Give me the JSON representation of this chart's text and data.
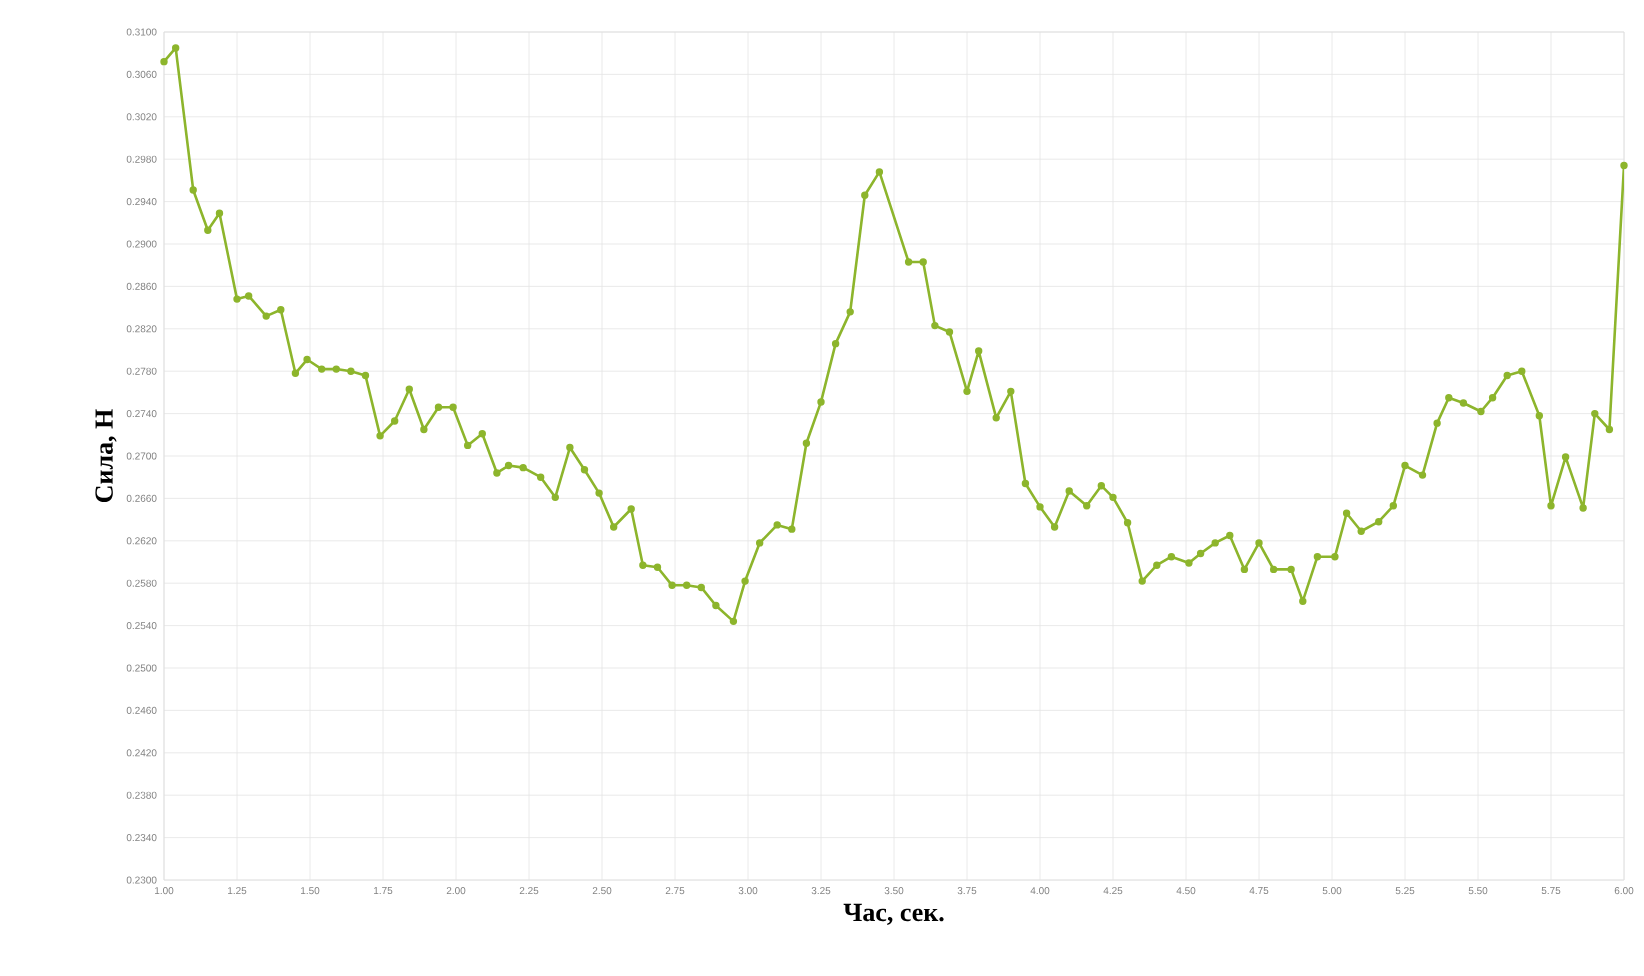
{
  "chart_data": {
    "type": "line",
    "xlabel": "Час, сек.",
    "ylabel": "Сила, Н",
    "x": [
      1.0,
      1.04,
      1.1,
      1.15,
      1.19,
      1.25,
      1.29,
      1.35,
      1.4,
      1.45,
      1.49,
      1.54,
      1.59,
      1.64,
      1.69,
      1.74,
      1.79,
      1.84,
      1.89,
      1.94,
      1.99,
      2.04,
      2.09,
      2.14,
      2.18,
      2.23,
      2.29,
      2.34,
      2.39,
      2.44,
      2.49,
      2.54,
      2.6,
      2.64,
      2.69,
      2.74,
      2.79,
      2.84,
      2.89,
      2.95,
      2.99,
      3.04,
      3.1,
      3.15,
      3.2,
      3.25,
      3.3,
      3.35,
      3.4,
      3.45,
      3.55,
      3.6,
      3.64,
      3.69,
      3.75,
      3.79,
      3.85,
      3.9,
      3.95,
      4.0,
      4.05,
      4.1,
      4.16,
      4.21,
      4.25,
      4.3,
      4.35,
      4.4,
      4.45,
      4.51,
      4.55,
      4.6,
      4.65,
      4.7,
      4.75,
      4.8,
      4.86,
      4.9,
      4.95,
      5.01,
      5.05,
      5.1,
      5.16,
      5.21,
      5.25,
      5.31,
      5.36,
      5.4,
      5.45,
      5.51,
      5.55,
      5.6,
      5.65,
      5.71,
      5.75,
      5.8,
      5.86,
      5.9,
      5.95,
      6.0
    ],
    "series": [
      {
        "color": "#8db52c",
        "values": [
          0.3072,
          0.3085,
          0.2951,
          0.2913,
          0.2929,
          0.2848,
          0.2851,
          0.2832,
          0.2838,
          0.2778,
          0.2791,
          0.2782,
          0.2782,
          0.278,
          0.2776,
          0.2719,
          0.2733,
          0.2763,
          0.2725,
          0.2746,
          0.2746,
          0.271,
          0.2721,
          0.2684,
          0.2691,
          0.2689,
          0.268,
          0.2661,
          0.2708,
          0.2687,
          0.2665,
          0.2633,
          0.265,
          0.2597,
          0.2595,
          0.2578,
          0.2578,
          0.2576,
          0.2559,
          0.2544,
          0.2582,
          0.2618,
          0.2635,
          0.2631,
          0.2712,
          0.2751,
          0.2806,
          0.2836,
          0.2946,
          0.2968,
          0.2883,
          0.2883,
          0.2823,
          0.2817,
          0.2761,
          0.2799,
          0.2736,
          0.2761,
          0.2674,
          0.2652,
          0.2633,
          0.2667,
          0.2653,
          0.2672,
          0.2661,
          0.2637,
          0.2582,
          0.2597,
          0.2605,
          0.2599,
          0.2608,
          0.2618,
          0.2625,
          0.2593,
          0.2618,
          0.2593,
          0.2593,
          0.2563,
          0.2605,
          0.2605,
          0.2646,
          0.2629,
          0.2638,
          0.2653,
          0.2691,
          0.2682,
          0.2731,
          0.2755,
          0.275,
          0.2742,
          0.2755,
          0.2776,
          0.278,
          0.2738,
          0.2653,
          0.2699,
          0.2651,
          0.274,
          0.2725,
          0.2974
        ]
      }
    ],
    "xlim": [
      1.0,
      6.0
    ],
    "xticks": [
      {
        "value": 1.0,
        "label": "1.00"
      },
      {
        "value": 1.25,
        "label": "1.25"
      },
      {
        "value": 1.5,
        "label": "1.50"
      },
      {
        "value": 1.75,
        "label": "1.75"
      },
      {
        "value": 2.0,
        "label": "2.00"
      },
      {
        "value": 2.25,
        "label": "2.25"
      },
      {
        "value": 2.5,
        "label": "2.50"
      },
      {
        "value": 2.75,
        "label": "2.75"
      },
      {
        "value": 3.0,
        "label": "3.00"
      },
      {
        "value": 3.25,
        "label": "3.25"
      },
      {
        "value": 3.5,
        "label": "3.50"
      },
      {
        "value": 3.75,
        "label": "3.75"
      },
      {
        "value": 4.0,
        "label": "4.00"
      },
      {
        "value": 4.25,
        "label": "4.25"
      },
      {
        "value": 4.5,
        "label": "4.50"
      },
      {
        "value": 4.75,
        "label": "4.75"
      },
      {
        "value": 5.0,
        "label": "5.00"
      },
      {
        "value": 5.25,
        "label": "5.25"
      },
      {
        "value": 5.5,
        "label": "5.50"
      },
      {
        "value": 5.75,
        "label": "5.75"
      },
      {
        "value": 6.0,
        "label": "6.00"
      }
    ],
    "ylim": [
      0.23,
      0.31
    ],
    "yticks": [
      {
        "value": 0.23,
        "label": "0.2300"
      },
      {
        "value": 0.234,
        "label": "0.2340"
      },
      {
        "value": 0.238,
        "label": "0.2380"
      },
      {
        "value": 0.242,
        "label": "0.2420"
      },
      {
        "value": 0.246,
        "label": "0.2460"
      },
      {
        "value": 0.25,
        "label": "0.2500"
      },
      {
        "value": 0.254,
        "label": "0.2540"
      },
      {
        "value": 0.258,
        "label": "0.2580"
      },
      {
        "value": 0.262,
        "label": "0.2620"
      },
      {
        "value": 0.266,
        "label": "0.2660"
      },
      {
        "value": 0.27,
        "label": "0.2700"
      },
      {
        "value": 0.274,
        "label": "0.2740"
      },
      {
        "value": 0.278,
        "label": "0.2780"
      },
      {
        "value": 0.282,
        "label": "0.2820"
      },
      {
        "value": 0.286,
        "label": "0.2860"
      },
      {
        "value": 0.29,
        "label": "0.2900"
      },
      {
        "value": 0.294,
        "label": "0.2940"
      },
      {
        "value": 0.298,
        "label": "0.2980"
      },
      {
        "value": 0.302,
        "label": "0.3020"
      },
      {
        "value": 0.306,
        "label": "0.3060"
      },
      {
        "value": 0.31,
        "label": "0.3100"
      }
    ],
    "grid": true,
    "marker": "circle",
    "line_style": "solid"
  }
}
